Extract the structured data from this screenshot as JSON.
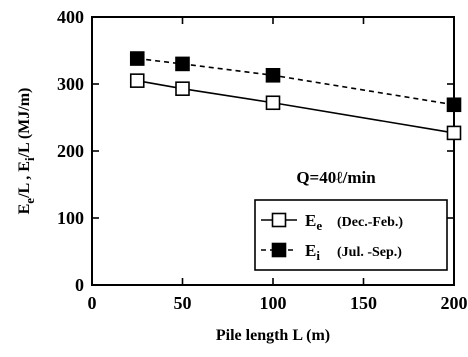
{
  "chart_data": {
    "type": "line",
    "xlabel": "Pile length L (m)",
    "ylabel": "Ee/L , Ei/L  (MJ/m)",
    "xlim": [
      0,
      200
    ],
    "ylim": [
      0,
      400
    ],
    "xticks": [
      0,
      50,
      100,
      150,
      200
    ],
    "yticks": [
      0,
      100,
      200,
      300,
      400
    ],
    "grid": false,
    "annotation": "Q=40ℓ/min",
    "legend_placement": "bottom-right",
    "series": [
      {
        "name": "Ee (Dec.-Feb.)",
        "legend_symbol": "Ee",
        "legend_period": "(Dec.-Feb.)",
        "marker": "open-square",
        "line": "solid",
        "x": [
          25,
          50,
          100,
          200
        ],
        "values": [
          305,
          293,
          272,
          227
        ]
      },
      {
        "name": "Ei (Jul. -Sep.)",
        "legend_symbol": "Ei",
        "legend_period": "(Jul. -Sep.)",
        "marker": "filled-square",
        "line": "dashed",
        "x": [
          25,
          50,
          100,
          200
        ],
        "values": [
          338,
          330,
          313,
          269
        ]
      }
    ]
  }
}
